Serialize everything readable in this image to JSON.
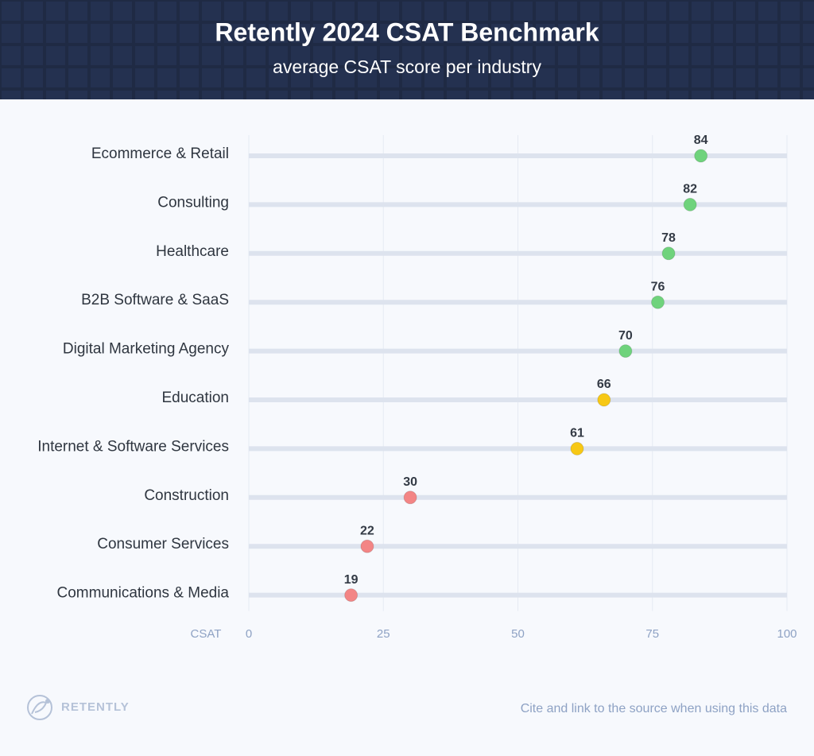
{
  "chart_data": {
    "type": "dot",
    "title": "Retently 2024 CSAT Benchmark",
    "subtitle": "average CSAT score per industry",
    "x_label": "CSAT",
    "categories": [
      "Ecommerce & Retail",
      "Consulting",
      "Healthcare",
      "B2B Software & SaaS",
      "Digital Marketing Agency",
      "Education",
      "Internet & Software Services",
      "Construction",
      "Consumer Services",
      "Communications & Media"
    ],
    "values": [
      84,
      82,
      78,
      76,
      70,
      66,
      61,
      30,
      22,
      19
    ],
    "colors": [
      "#6fd37c",
      "#6fd37c",
      "#6fd37c",
      "#6fd37c",
      "#6fd37c",
      "#f7c815",
      "#f7c815",
      "#f38585",
      "#f38585",
      "#f38585"
    ],
    "xlim": [
      0,
      100
    ],
    "xticks": [
      0,
      25,
      50,
      75,
      100
    ],
    "grid": true,
    "brand": "RETENTLY",
    "source_note": "Cite and link to the source when using this data"
  }
}
